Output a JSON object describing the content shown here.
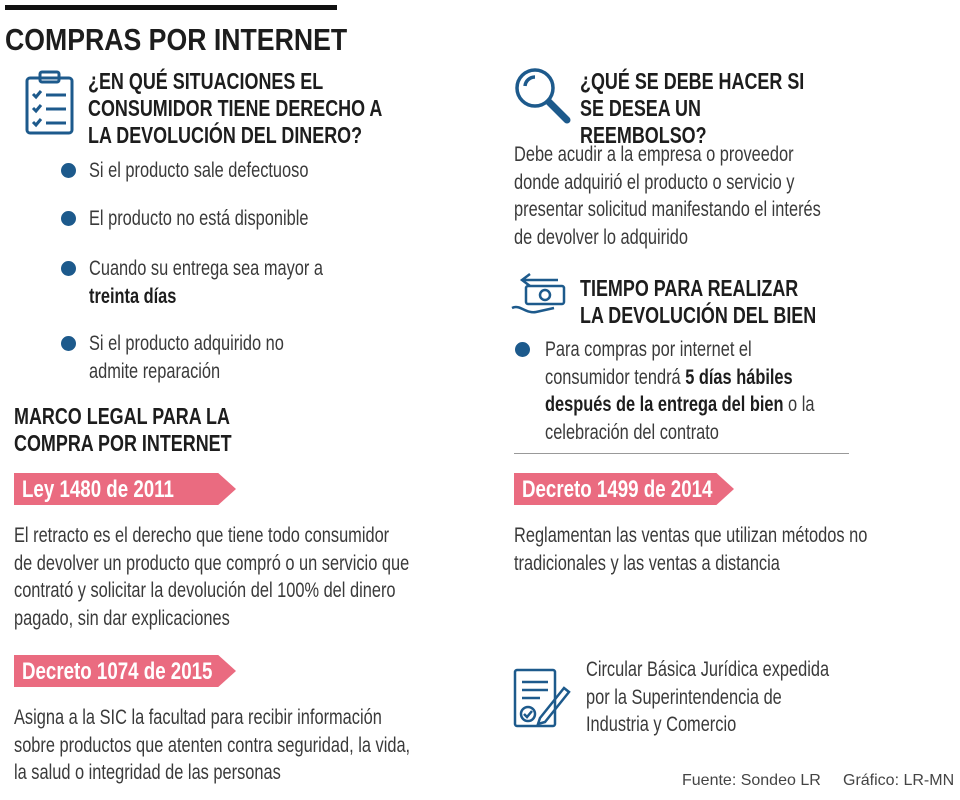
{
  "header": {
    "title": "COMPRAS POR INTERNET"
  },
  "situations": {
    "title": "¿EN QUÉ SITUACIONES EL CONSUMIDOR TIENE DERECHO A LA DEVOLUCIÓN DEL DINERO?",
    "items": [
      {
        "text": "Si el producto sale defectuoso"
      },
      {
        "text": "El producto no está disponible"
      },
      {
        "text": "Cuando su entrega sea mayor a ",
        "bold": "treinta días"
      },
      {
        "text": "Si el producto adquirido no admite reparación"
      }
    ]
  },
  "legal": {
    "title": "MARCO LEGAL PARA LA COMPRA POR INTERNET",
    "laws": [
      {
        "name": "Ley 1480 de 2011",
        "text": "El retracto es el derecho que tiene todo consumidor de devolver un producto que compró o un servicio que contrató y solicitar la devolución del 100% del dinero pagado, sin dar explicaciones"
      },
      {
        "name": "Decreto 1074 de 2015",
        "text": "Asigna a la SIC la facultad para recibir información sobre productos que atenten contra seguridad, la vida, la salud o integridad de las personas"
      },
      {
        "name": "Decreto 1499 de 2014",
        "text": "Reglamentan las ventas que utilizan métodos no tradicionales y las ventas a distancia"
      }
    ],
    "circular": "Circular Básica Jurídica expedida por la Superintendencia de Industria y Comercio"
  },
  "refund": {
    "title": "¿QUÉ SE DEBE HACER SI SE DESEA UN REEMBOLSO?",
    "text": "Debe acudir a la empresa o proveedor donde adquirió el producto o servicio y presentar solicitud manifestando el interés de devolver lo adquirido"
  },
  "time": {
    "title": "TIEMPO PARA REALIZAR LA DEVOLUCIÓN DEL BIEN",
    "text": "Para compras por internet el consumidor tendrá ",
    "bold": "5 días hábiles después de la entrega del bien",
    "after": " o la celebración del contrato"
  },
  "footer": {
    "source": "Fuente: Sondeo LR",
    "credit": "Gráfico: LR-MN"
  }
}
